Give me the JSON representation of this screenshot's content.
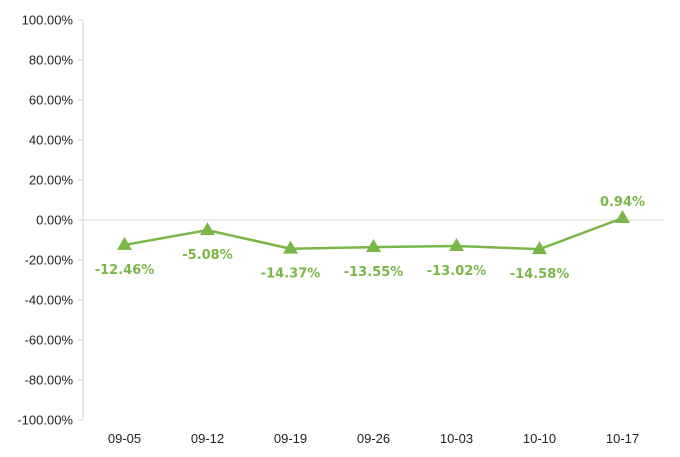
{
  "chart_data": {
    "type": "line",
    "categories": [
      "09-05",
      "09-12",
      "09-19",
      "09-26",
      "10-03",
      "10-10",
      "10-17"
    ],
    "series": [
      {
        "values": [
          -12.46,
          -5.08,
          -14.37,
          -13.55,
          -13.02,
          -14.58,
          0.94
        ],
        "labels": [
          "-12.46%",
          "-5.08%",
          "-14.37%",
          "-13.55%",
          "-13.02%",
          "-14.58%",
          "0.94%"
        ],
        "marker": "triangle",
        "color": "#7ab648"
      }
    ],
    "ylim": [
      -100,
      100
    ],
    "yticks": [
      100,
      80,
      60,
      40,
      20,
      0,
      -20,
      -40,
      -60,
      -80,
      -100
    ],
    "ytick_labels": [
      "100.00%",
      "80.00%",
      "60.00%",
      "40.00%",
      "20.00%",
      "0.00%",
      "-20.00%",
      "-40.00%",
      "-60.00%",
      "-80.00%",
      "-100.00%"
    ],
    "title": "",
    "xlabel": "",
    "ylabel": "",
    "grid": false,
    "legend": "none"
  }
}
